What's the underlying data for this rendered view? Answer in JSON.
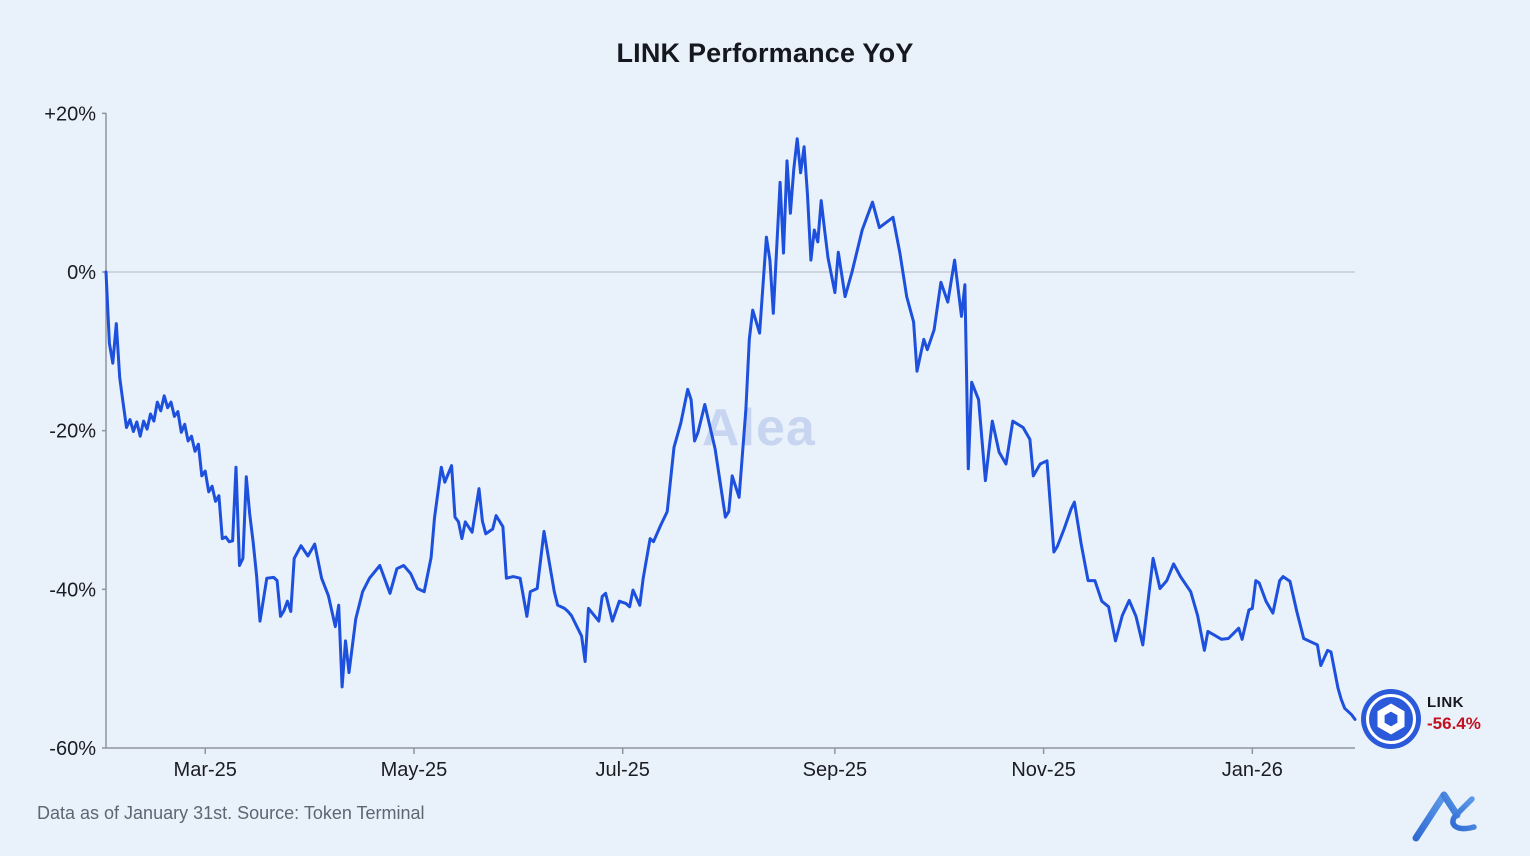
{
  "title": "LINK Performance YoY",
  "watermark": "Alea",
  "badge": {
    "asset": "LINK",
    "value": "-56.4%"
  },
  "footer": {
    "note": "Data as of January 31st. Source: Token Terminal"
  },
  "colors": {
    "background": "#e9f1fb",
    "line": "#1d50dc",
    "badge_blue": "#2a5ada",
    "value_red": "#c2121f",
    "axis": "#8f959e",
    "zero_line": "#b3b9c2",
    "title_text": "#15181e",
    "tick_text": "#1a1d22",
    "footer_text": "#5d6673",
    "watermark": "#c8d5f0"
  },
  "chart_data": {
    "type": "line",
    "title": "LINK Performance YoY",
    "series_name": "LINK year-over-year return",
    "unit": "%",
    "xlabel": "",
    "ylabel": "",
    "grid": "zero-line-only",
    "legend": "none",
    "x_domain": [
      "2025-01-31",
      "2026-01-31"
    ],
    "ylim": [
      -60,
      20
    ],
    "y_ticks": [
      {
        "value": 20,
        "label": "+20%"
      },
      {
        "value": 0,
        "label": "0%"
      },
      {
        "value": -20,
        "label": "-20%"
      },
      {
        "value": -40,
        "label": "-40%"
      },
      {
        "value": -60,
        "label": "-60%"
      }
    ],
    "x_ticks": [
      {
        "date": "2025-03-01",
        "label": "Mar-25"
      },
      {
        "date": "2025-05-01",
        "label": "May-25"
      },
      {
        "date": "2025-07-01",
        "label": "Jul-25"
      },
      {
        "date": "2025-09-01",
        "label": "Sep-25"
      },
      {
        "date": "2025-11-01",
        "label": "Nov-25"
      },
      {
        "date": "2026-01-01",
        "label": "Jan-26"
      }
    ],
    "last_point": {
      "date": "2026-01-31",
      "value": -56.4
    },
    "points": [
      [
        "2025-01-31",
        0
      ],
      [
        "2025-02-01",
        -9
      ],
      [
        "2025-02-02",
        -11.5
      ],
      [
        "2025-02-03",
        -6.5
      ],
      [
        "2025-02-04",
        -13.3
      ],
      [
        "2025-02-05",
        -16.5
      ],
      [
        "2025-02-06",
        -19.6
      ],
      [
        "2025-02-07",
        -18.6
      ],
      [
        "2025-02-08",
        -20.1
      ],
      [
        "2025-02-09",
        -18.9
      ],
      [
        "2025-02-10",
        -20.7
      ],
      [
        "2025-02-11",
        -18.8
      ],
      [
        "2025-02-12",
        -19.8
      ],
      [
        "2025-02-13",
        -17.9
      ],
      [
        "2025-02-14",
        -18.8
      ],
      [
        "2025-02-15",
        -16.4
      ],
      [
        "2025-02-16",
        -17.5
      ],
      [
        "2025-02-17",
        -15.6
      ],
      [
        "2025-02-18",
        -17.1
      ],
      [
        "2025-02-19",
        -16.4
      ],
      [
        "2025-02-20",
        -18.2
      ],
      [
        "2025-02-21",
        -17.6
      ],
      [
        "2025-02-22",
        -20.2
      ],
      [
        "2025-02-23",
        -19.2
      ],
      [
        "2025-02-24",
        -21.3
      ],
      [
        "2025-02-25",
        -20.7
      ],
      [
        "2025-02-26",
        -22.6
      ],
      [
        "2025-02-27",
        -21.7
      ],
      [
        "2025-02-28",
        -25.7
      ],
      [
        "2025-03-01",
        -25.1
      ],
      [
        "2025-03-02",
        -27.7
      ],
      [
        "2025-03-03",
        -27.0
      ],
      [
        "2025-03-04",
        -28.9
      ],
      [
        "2025-03-05",
        -28.2
      ],
      [
        "2025-03-06",
        -33.6
      ],
      [
        "2025-03-07",
        -33.4
      ],
      [
        "2025-03-08",
        -34.0
      ],
      [
        "2025-03-09",
        -33.9
      ],
      [
        "2025-03-10",
        -24.6
      ],
      [
        "2025-03-11",
        -37.0
      ],
      [
        "2025-03-12",
        -36.1
      ],
      [
        "2025-03-13",
        -25.8
      ],
      [
        "2025-03-14",
        -30.5
      ],
      [
        "2025-03-15",
        -34.0
      ],
      [
        "2025-03-16",
        -38.3
      ],
      [
        "2025-03-17",
        -44.0
      ],
      [
        "2025-03-19",
        -38.6
      ],
      [
        "2025-03-21",
        -38.5
      ],
      [
        "2025-03-22",
        -38.9
      ],
      [
        "2025-03-23",
        -43.4
      ],
      [
        "2025-03-24",
        -42.7
      ],
      [
        "2025-03-25",
        -41.5
      ],
      [
        "2025-03-26",
        -42.8
      ],
      [
        "2025-03-27",
        -36.1
      ],
      [
        "2025-03-29",
        -34.5
      ],
      [
        "2025-03-31",
        -35.8
      ],
      [
        "2025-04-02",
        -34.3
      ],
      [
        "2025-04-04",
        -38.6
      ],
      [
        "2025-04-06",
        -40.8
      ],
      [
        "2025-04-08",
        -44.7
      ],
      [
        "2025-04-09",
        -42.0
      ],
      [
        "2025-04-10",
        -52.3
      ],
      [
        "2025-04-11",
        -46.5
      ],
      [
        "2025-04-12",
        -50.5
      ],
      [
        "2025-04-14",
        -43.7
      ],
      [
        "2025-04-16",
        -40.3
      ],
      [
        "2025-04-18",
        -38.6
      ],
      [
        "2025-04-21",
        -37.0
      ],
      [
        "2025-04-24",
        -40.5
      ],
      [
        "2025-04-26",
        -37.4
      ],
      [
        "2025-04-28",
        -37.0
      ],
      [
        "2025-04-30",
        -38.0
      ],
      [
        "2025-05-02",
        -39.9
      ],
      [
        "2025-05-04",
        -40.3
      ],
      [
        "2025-05-06",
        -36.0
      ],
      [
        "2025-05-07",
        -31.0
      ],
      [
        "2025-05-09",
        -24.6
      ],
      [
        "2025-05-10",
        -26.5
      ],
      [
        "2025-05-12",
        -24.4
      ],
      [
        "2025-05-13",
        -30.9
      ],
      [
        "2025-05-14",
        -31.5
      ],
      [
        "2025-05-15",
        -33.6
      ],
      [
        "2025-05-16",
        -31.5
      ],
      [
        "2025-05-18",
        -32.8
      ],
      [
        "2025-05-20",
        -27.3
      ],
      [
        "2025-05-21",
        -31.4
      ],
      [
        "2025-05-22",
        -33.0
      ],
      [
        "2025-05-24",
        -32.4
      ],
      [
        "2025-05-25",
        -30.7
      ],
      [
        "2025-05-27",
        -32.1
      ],
      [
        "2025-05-28",
        -38.6
      ],
      [
        "2025-05-30",
        -38.4
      ],
      [
        "2025-06-01",
        -38.6
      ],
      [
        "2025-06-03",
        -43.4
      ],
      [
        "2025-06-04",
        -40.3
      ],
      [
        "2025-06-06",
        -39.9
      ],
      [
        "2025-06-08",
        -32.7
      ],
      [
        "2025-06-11",
        -40.3
      ],
      [
        "2025-06-12",
        -42.0
      ],
      [
        "2025-06-14",
        -42.4
      ],
      [
        "2025-06-15",
        -42.8
      ],
      [
        "2025-06-16",
        -43.3
      ],
      [
        "2025-06-19",
        -45.9
      ],
      [
        "2025-06-20",
        -49.1
      ],
      [
        "2025-06-21",
        -42.4
      ],
      [
        "2025-06-24",
        -44.0
      ],
      [
        "2025-06-25",
        -40.9
      ],
      [
        "2025-06-26",
        -40.5
      ],
      [
        "2025-06-28",
        -44.0
      ],
      [
        "2025-06-30",
        -41.5
      ],
      [
        "2025-07-02",
        -41.8
      ],
      [
        "2025-07-03",
        -42.2
      ],
      [
        "2025-07-04",
        -40.1
      ],
      [
        "2025-07-06",
        -42.0
      ],
      [
        "2025-07-07",
        -38.6
      ],
      [
        "2025-07-09",
        -33.6
      ],
      [
        "2025-07-10",
        -34.0
      ],
      [
        "2025-07-12",
        -32.0
      ],
      [
        "2025-07-14",
        -30.2
      ],
      [
        "2025-07-16",
        -22.1
      ],
      [
        "2025-07-18",
        -19.0
      ],
      [
        "2025-07-20",
        -14.8
      ],
      [
        "2025-07-21",
        -16.1
      ],
      [
        "2025-07-22",
        -21.3
      ],
      [
        "2025-07-23",
        -20.2
      ],
      [
        "2025-07-25",
        -16.7
      ],
      [
        "2025-07-28",
        -22.3
      ],
      [
        "2025-07-31",
        -30.9
      ],
      [
        "2025-08-01",
        -30.2
      ],
      [
        "2025-08-02",
        -25.7
      ],
      [
        "2025-08-04",
        -28.4
      ],
      [
        "2025-08-06",
        -17.3
      ],
      [
        "2025-08-07",
        -8.5
      ],
      [
        "2025-08-08",
        -4.8
      ],
      [
        "2025-08-10",
        -7.7
      ],
      [
        "2025-08-12",
        4.4
      ],
      [
        "2025-08-13",
        1.5
      ],
      [
        "2025-08-14",
        -5.2
      ],
      [
        "2025-08-16",
        11.3
      ],
      [
        "2025-08-17",
        2.4
      ],
      [
        "2025-08-18",
        14.0
      ],
      [
        "2025-08-19",
        7.4
      ],
      [
        "2025-08-20",
        13.0
      ],
      [
        "2025-08-21",
        16.8
      ],
      [
        "2025-08-22",
        12.5
      ],
      [
        "2025-08-23",
        15.8
      ],
      [
        "2025-08-24",
        9.7
      ],
      [
        "2025-08-25",
        1.5
      ],
      [
        "2025-08-26",
        5.3
      ],
      [
        "2025-08-27",
        3.8
      ],
      [
        "2025-08-28",
        9.0
      ],
      [
        "2025-08-29",
        5.3
      ],
      [
        "2025-08-30",
        1.8
      ],
      [
        "2025-09-01",
        -2.6
      ],
      [
        "2025-09-02",
        2.5
      ],
      [
        "2025-09-04",
        -3.1
      ],
      [
        "2025-09-06",
        0.0
      ],
      [
        "2025-09-09",
        5.3
      ],
      [
        "2025-09-12",
        8.8
      ],
      [
        "2025-09-14",
        5.6
      ],
      [
        "2025-09-18",
        6.9
      ],
      [
        "2025-09-20",
        2.4
      ],
      [
        "2025-09-22",
        -3.1
      ],
      [
        "2025-09-24",
        -6.3
      ],
      [
        "2025-09-25",
        -12.5
      ],
      [
        "2025-09-27",
        -8.5
      ],
      [
        "2025-09-28",
        -9.8
      ],
      [
        "2025-09-30",
        -7.3
      ],
      [
        "2025-10-02",
        -1.3
      ],
      [
        "2025-10-04",
        -3.8
      ],
      [
        "2025-10-06",
        1.5
      ],
      [
        "2025-10-08",
        -5.6
      ],
      [
        "2025-10-09",
        -1.6
      ],
      [
        "2025-10-10",
        -24.8
      ],
      [
        "2025-10-11",
        -13.9
      ],
      [
        "2025-10-13",
        -16.1
      ],
      [
        "2025-10-15",
        -26.3
      ],
      [
        "2025-10-17",
        -18.8
      ],
      [
        "2025-10-19",
        -22.7
      ],
      [
        "2025-10-21",
        -24.2
      ],
      [
        "2025-10-23",
        -18.8
      ],
      [
        "2025-10-26",
        -19.6
      ],
      [
        "2025-10-28",
        -21.1
      ],
      [
        "2025-10-29",
        -25.7
      ],
      [
        "2025-10-31",
        -24.2
      ],
      [
        "2025-11-02",
        -23.8
      ],
      [
        "2025-11-04",
        -35.3
      ],
      [
        "2025-11-05",
        -34.6
      ],
      [
        "2025-11-07",
        -32.4
      ],
      [
        "2025-11-09",
        -29.9
      ],
      [
        "2025-11-10",
        -29.0
      ],
      [
        "2025-11-12",
        -34.3
      ],
      [
        "2025-11-14",
        -38.9
      ],
      [
        "2025-11-16",
        -38.9
      ],
      [
        "2025-11-18",
        -41.5
      ],
      [
        "2025-11-20",
        -42.2
      ],
      [
        "2025-11-22",
        -46.5
      ],
      [
        "2025-11-24",
        -43.3
      ],
      [
        "2025-11-26",
        -41.4
      ],
      [
        "2025-11-28",
        -43.4
      ],
      [
        "2025-11-30",
        -47.0
      ],
      [
        "2025-12-03",
        -36.1
      ],
      [
        "2025-12-05",
        -39.9
      ],
      [
        "2025-12-07",
        -38.9
      ],
      [
        "2025-12-09",
        -36.8
      ],
      [
        "2025-12-11",
        -38.4
      ],
      [
        "2025-12-14",
        -40.3
      ],
      [
        "2025-12-16",
        -43.3
      ],
      [
        "2025-12-18",
        -47.7
      ],
      [
        "2025-12-19",
        -45.3
      ],
      [
        "2025-12-21",
        -45.8
      ],
      [
        "2025-12-23",
        -46.3
      ],
      [
        "2025-12-25",
        -46.2
      ],
      [
        "2025-12-28",
        -44.9
      ],
      [
        "2025-12-29",
        -46.3
      ],
      [
        "2025-12-31",
        -42.6
      ],
      [
        "2026-01-01",
        -42.4
      ],
      [
        "2026-01-02",
        -38.9
      ],
      [
        "2026-01-03",
        -39.2
      ],
      [
        "2026-01-05",
        -41.5
      ],
      [
        "2026-01-07",
        -43.0
      ],
      [
        "2026-01-09",
        -38.9
      ],
      [
        "2026-01-10",
        -38.4
      ],
      [
        "2026-01-12",
        -39.0
      ],
      [
        "2026-01-14",
        -42.8
      ],
      [
        "2026-01-16",
        -46.2
      ],
      [
        "2026-01-18",
        -46.6
      ],
      [
        "2026-01-20",
        -47.0
      ],
      [
        "2026-01-21",
        -49.6
      ],
      [
        "2026-01-23",
        -47.7
      ],
      [
        "2026-01-24",
        -47.9
      ],
      [
        "2026-01-26",
        -52.4
      ],
      [
        "2026-01-27",
        -53.9
      ],
      [
        "2026-01-28",
        -55.0
      ],
      [
        "2026-01-30",
        -55.8
      ],
      [
        "2026-01-31",
        -56.4
      ]
    ]
  }
}
